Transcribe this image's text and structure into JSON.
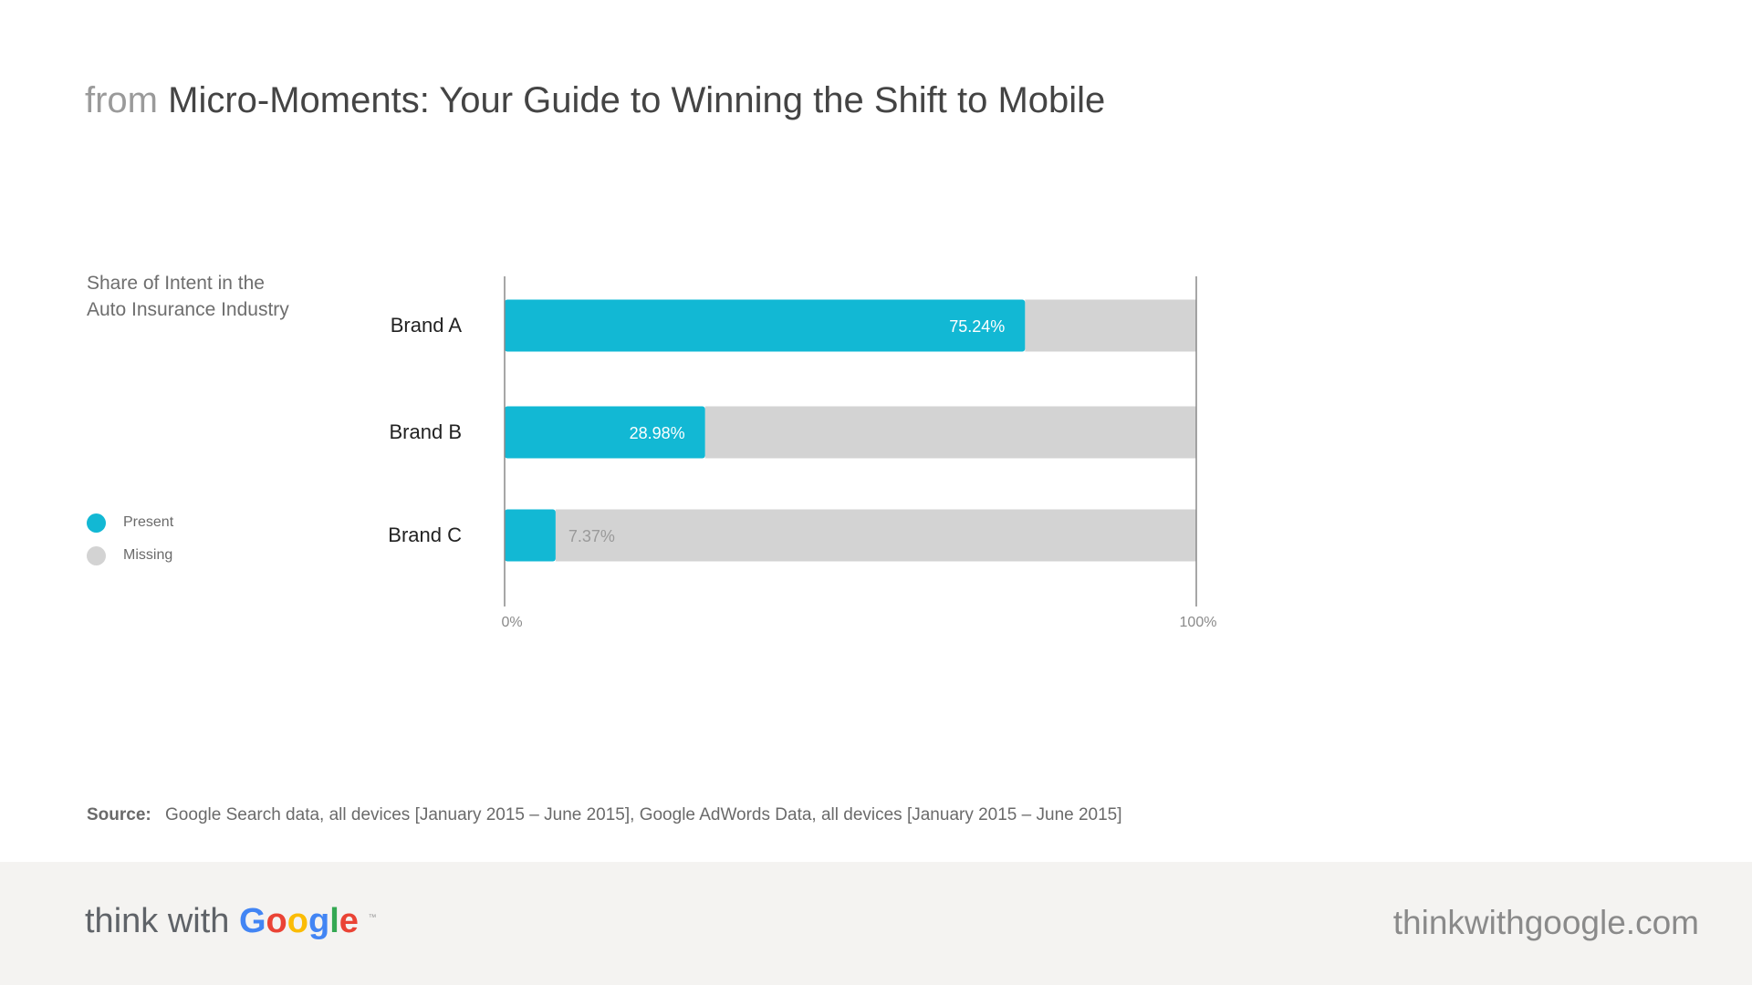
{
  "header": {
    "prefix": "from",
    "title": "Micro-Moments: Your Guide to Winning the Shift to Mobile"
  },
  "subtitle": {
    "line1": "Share of Intent in the",
    "line2": "Auto Insurance Industry"
  },
  "legend": [
    {
      "label": "Present",
      "color": "#12B8D4"
    },
    {
      "label": "Missing",
      "color": "#D3D3D3"
    }
  ],
  "chart_data": {
    "type": "bar",
    "orientation": "horizontal",
    "stacked": true,
    "categories": [
      "Brand A",
      "Brand B",
      "Brand C"
    ],
    "series": [
      {
        "name": "Present",
        "color": "#12B8D4",
        "values": [
          75.24,
          28.98,
          7.37
        ]
      },
      {
        "name": "Missing",
        "color": "#D3D3D3",
        "values": [
          24.76,
          71.02,
          92.63
        ]
      }
    ],
    "data_labels": [
      "75.24%",
      "28.98%",
      "7.37%"
    ],
    "xlim": [
      0,
      100
    ],
    "tick_labels": [
      "0%",
      "100%"
    ],
    "grid": false,
    "legend_position": "left"
  },
  "source": {
    "label": "Source:",
    "text": "Google Search data, all devices [January 2015 – June 2015], Google AdWords Data, all devices [January 2015 – June 2015]"
  },
  "footer": {
    "brand_think": "think with",
    "brand_google_letters": [
      {
        "ch": "G",
        "color": "#4285F4"
      },
      {
        "ch": "o",
        "color": "#EA4335"
      },
      {
        "ch": "o",
        "color": "#FBBC05"
      },
      {
        "ch": "g",
        "color": "#4285F4"
      },
      {
        "ch": "l",
        "color": "#34A853"
      },
      {
        "ch": "e",
        "color": "#EA4335"
      }
    ],
    "brand_tm": "™",
    "site": "thinkwithgoogle.com"
  }
}
